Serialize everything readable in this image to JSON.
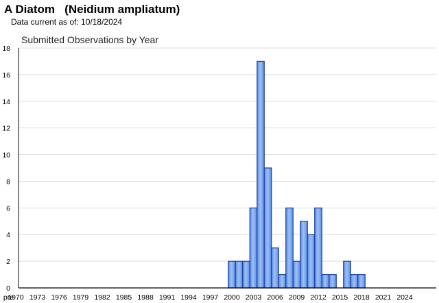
{
  "header": {
    "title": "A Diatom   (Neidium ampliatum)",
    "data_current_label": "Data current as of: 10/18/2024"
  },
  "colors": {
    "bar_fill": "#5b8ee6",
    "bar_highlight": "#9ec0f5",
    "bar_stroke": "#1a3f9e",
    "grid": "#dddddd",
    "axis": "#000000"
  },
  "chart_data": {
    "type": "bar",
    "title": "Submitted Observations by Year",
    "xlabel": "",
    "ylabel": "",
    "ylim": [
      0,
      18
    ],
    "yticks": [
      0,
      2,
      4,
      6,
      8,
      10,
      12,
      14,
      16,
      18
    ],
    "grid": true,
    "legend": "none",
    "x_tick_labels": [
      "pre",
      "1970",
      "1973",
      "1976",
      "1979",
      "1982",
      "1985",
      "1988",
      "1991",
      "1994",
      "1997",
      "2000",
      "2003",
      "2006",
      "2009",
      "2012",
      "2015",
      "2018",
      "2021",
      "2024"
    ],
    "categories": [
      "pre",
      "1970",
      "1971",
      "1972",
      "1973",
      "1974",
      "1975",
      "1976",
      "1977",
      "1978",
      "1979",
      "1980",
      "1981",
      "1982",
      "1983",
      "1984",
      "1985",
      "1986",
      "1987",
      "1988",
      "1989",
      "1990",
      "1991",
      "1992",
      "1993",
      "1994",
      "1995",
      "1996",
      "1997",
      "1998",
      "1999",
      "2000",
      "2001",
      "2002",
      "2003",
      "2004",
      "2005",
      "2006",
      "2007",
      "2008",
      "2009",
      "2010",
      "2011",
      "2012",
      "2013",
      "2014",
      "2015",
      "2016",
      "2017",
      "2018",
      "2019",
      "2020",
      "2021",
      "2022",
      "2023",
      "2024"
    ],
    "values": [
      0,
      0,
      0,
      0,
      0,
      0,
      0,
      0,
      0,
      0,
      0,
      0,
      0,
      0,
      0,
      0,
      0,
      0,
      0,
      0,
      0,
      0,
      0,
      0,
      0,
      0,
      0,
      0,
      0,
      0,
      0,
      2,
      2,
      2,
      6,
      17,
      9,
      3,
      1,
      6,
      2,
      5,
      4,
      6,
      1,
      1,
      0,
      2,
      1,
      1,
      0,
      0,
      0,
      0,
      0,
      0
    ]
  }
}
